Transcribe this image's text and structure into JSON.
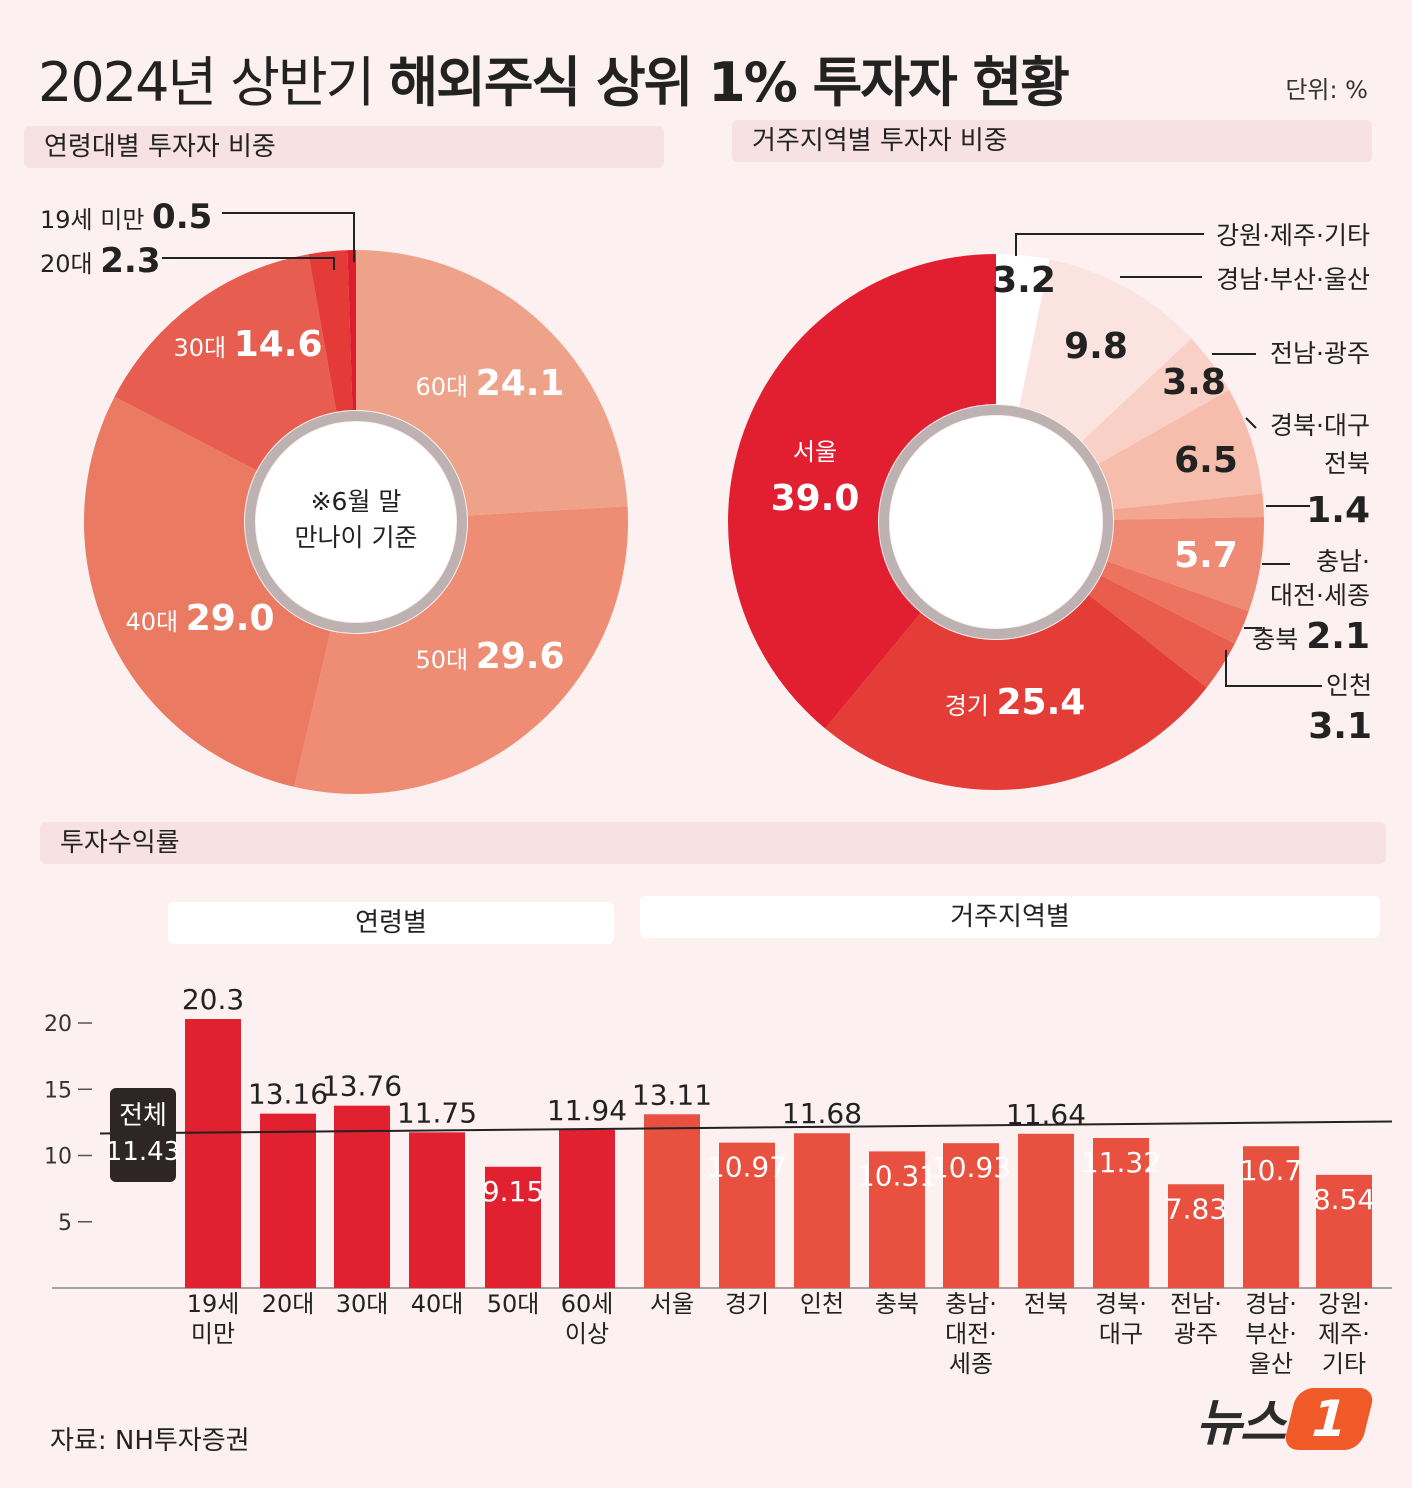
{
  "title": {
    "prefix": "2024년 상반기",
    "main": "해외주식 상위 1% 투자자 현황"
  },
  "unit": "단위: %",
  "sections": {
    "age_share": "연령대별 투자자 비중",
    "region_share": "거주지역별 투자자 비중",
    "returns": "투자수익률"
  },
  "subheads": {
    "by_age": "연령별",
    "by_region": "거주지역별"
  },
  "donut_age_center": [
    "※6월 말",
    "만나이 기준"
  ],
  "source": "자료: NH투자증권",
  "logo": {
    "text": "뉴스",
    "mark": "1"
  },
  "colors": {
    "red_dark": "#e1212f",
    "red_mid": "#e8513f",
    "accent_bg": "#fdf0f1"
  },
  "chart_data": [
    {
      "type": "pie",
      "title": "연령대별 투자자 비중",
      "slices": [
        {
          "label": "60대",
          "value": 24.1,
          "value_text": "24.1",
          "color": "#efa28a"
        },
        {
          "label": "50대",
          "value": 29.6,
          "value_text": "29.6",
          "color": "#ee8d74"
        },
        {
          "label": "40대",
          "value": 29.0,
          "value_text": "29.0",
          "color": "#eb7a63"
        },
        {
          "label": "30대",
          "value": 14.6,
          "value_text": "14.6",
          "color": "#e75d4f"
        },
        {
          "label": "20대",
          "value": 2.3,
          "value_text": "2.3",
          "color": "#e43a38"
        },
        {
          "label": "19세 미만",
          "value": 0.5,
          "value_text": "0.5",
          "color": "#d91f2c"
        }
      ]
    },
    {
      "type": "pie",
      "title": "거주지역별 투자자 비중",
      "slices": [
        {
          "label": "강원·제주·기타",
          "value": 3.2,
          "value_text": "3.2",
          "color": "#ffffff"
        },
        {
          "label": "경남·부산·울산",
          "value": 9.8,
          "value_text": "9.8",
          "color": "#fbe4df"
        },
        {
          "label": "전남·광주",
          "value": 3.8,
          "value_text": "3.8",
          "color": "#f9d0c5"
        },
        {
          "label": "경북·대구",
          "value": 6.5,
          "value_text": "6.5",
          "color": "#f6bcac"
        },
        {
          "label": "전북",
          "value": 1.4,
          "value_text": "1.4",
          "color": "#f3a793"
        },
        {
          "label": "충남·대전·세종",
          "value": 5.7,
          "value_text": "5.7",
          "color": "#ef8a74"
        },
        {
          "label": "충북",
          "value": 2.1,
          "value_text": "2.1",
          "color": "#ec735f"
        },
        {
          "label": "인천",
          "value": 3.1,
          "value_text": "3.1",
          "color": "#e85d4c"
        },
        {
          "label": "경기",
          "value": 25.4,
          "value_text": "25.4",
          "color": "#e43c36"
        },
        {
          "label": "서울",
          "value": 39.0,
          "value_text": "39.0",
          "color": "#e11f30"
        }
      ]
    },
    {
      "type": "bar",
      "title": "투자수익률",
      "categories": [
        "19세 미만",
        "20대",
        "30대",
        "40대",
        "50대",
        "60세 이상",
        "서울",
        "경기",
        "인천",
        "충북",
        "충남·대전·세종",
        "전북",
        "경북·대구",
        "전남·광주",
        "경남·부산·울산",
        "강원·제주·기타"
      ],
      "category_lines": [
        [
          "19세",
          "미만"
        ],
        [
          "20대"
        ],
        [
          "30대"
        ],
        [
          "40대"
        ],
        [
          "50대"
        ],
        [
          "60세",
          "이상"
        ],
        [
          "서울"
        ],
        [
          "경기"
        ],
        [
          "인천"
        ],
        [
          "충북"
        ],
        [
          "충남·",
          "대전·",
          "세종"
        ],
        [
          "전북"
        ],
        [
          "경북·",
          "대구"
        ],
        [
          "전남·",
          "광주"
        ],
        [
          "경남·",
          "부산·",
          "울산"
        ],
        [
          "강원·",
          "제주·",
          "기타"
        ]
      ],
      "groups": [
        "age",
        "age",
        "age",
        "age",
        "age",
        "age",
        "region",
        "region",
        "region",
        "region",
        "region",
        "region",
        "region",
        "region",
        "region",
        "region"
      ],
      "values": [
        20.3,
        13.16,
        13.76,
        11.75,
        9.15,
        11.94,
        13.11,
        10.97,
        11.68,
        10.31,
        10.93,
        11.64,
        11.32,
        7.83,
        10.7,
        8.54
      ],
      "value_labels": [
        "20.3",
        "13.16",
        "13.76",
        "11.75",
        "9.15",
        "11.94",
        "13.11",
        "10.97",
        "11.68",
        "10.31",
        "10.93",
        "11.64",
        "11.32",
        "7.83",
        "10.7",
        "8.54"
      ],
      "yticks": [
        5,
        10,
        15,
        20
      ],
      "ylim": [
        0,
        21
      ],
      "reference": {
        "label": "전체",
        "value": 11.43,
        "value_text": "11.43"
      }
    }
  ]
}
